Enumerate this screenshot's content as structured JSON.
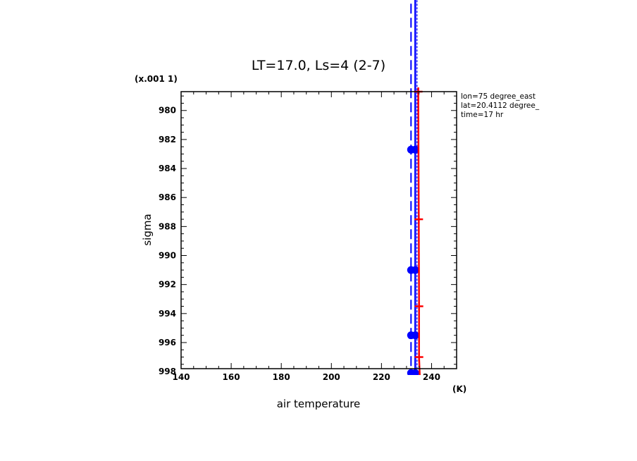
{
  "chart_data": {
    "type": "line",
    "title": "LT=17.0, Ls=4 (2-7)",
    "xlabel": "air temperature",
    "x_unit": "(K)",
    "ylabel": "sigma",
    "y_scale_label": "(x.001 1)",
    "xlim": [
      140,
      250
    ],
    "ylim": [
      997.8,
      978.7
    ],
    "x_ticks": [
      "140",
      "160",
      "180",
      "200",
      "220",
      "240"
    ],
    "y_ticks": [
      "980",
      "982",
      "984",
      "986",
      "988",
      "990",
      "992",
      "994",
      "996",
      "998"
    ],
    "info_lines": [
      "lon=75 degree_east",
      "lat=20.4112 degree_",
      "time=17 hr"
    ],
    "series": [
      {
        "color": "#0000ff",
        "style": "solid",
        "marker": "circle",
        "points": [
          [
            233.5,
            960.0
          ],
          [
            233.5,
            982.7
          ],
          [
            233.5,
            991.0
          ],
          [
            233.5,
            995.5
          ],
          [
            233.5,
            998.1
          ],
          [
            233.5,
            999.5
          ]
        ]
      },
      {
        "color": "#0000ff",
        "style": "dashed",
        "marker": "circle",
        "points": [
          [
            231.8,
            960.0
          ],
          [
            231.8,
            982.7
          ],
          [
            231.8,
            991.0
          ],
          [
            231.8,
            995.5
          ],
          [
            231.8,
            998.1
          ],
          [
            231.8,
            999.5
          ]
        ]
      },
      {
        "color": "#0000ff",
        "style": "dotted",
        "marker": "none",
        "points": [
          [
            234.2,
            960.0
          ],
          [
            234.2,
            982.7
          ],
          [
            234.2,
            991.0
          ],
          [
            234.2,
            995.5
          ],
          [
            234.2,
            998.1
          ],
          [
            234.2,
            999.5
          ]
        ]
      },
      {
        "color": "#ff0000",
        "style": "solid",
        "marker": "plus",
        "points": [
          [
            234.7,
            978.7
          ],
          [
            234.9,
            987.5
          ],
          [
            235.0,
            993.5
          ],
          [
            235.0,
            997.0
          ],
          [
            235.4,
            998.8
          ],
          [
            235.4,
            999.7
          ]
        ]
      }
    ]
  }
}
